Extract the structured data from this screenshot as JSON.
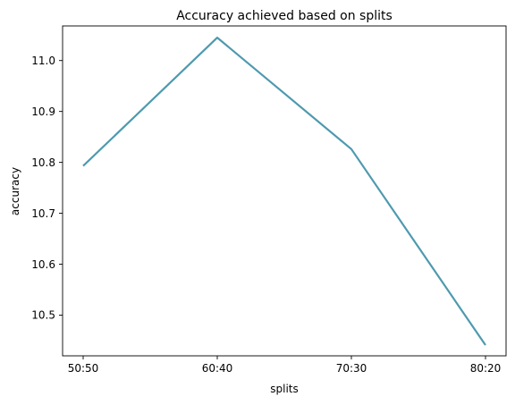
{
  "chart_data": {
    "type": "line",
    "title": "Accuracy achieved based on splits",
    "xlabel": "splits",
    "ylabel": "accuracy",
    "categories": [
      "50:50",
      "60:40",
      "70:30",
      "80:20"
    ],
    "values": [
      10.793,
      11.045,
      10.826,
      10.441
    ],
    "ylim": [
      10.42,
      11.068
    ],
    "yticks": [
      "10.5",
      "10.6",
      "10.7",
      "10.8",
      "10.9",
      "11.0"
    ],
    "grid": false,
    "legend": "none",
    "line_color": "#4e9aaf"
  }
}
